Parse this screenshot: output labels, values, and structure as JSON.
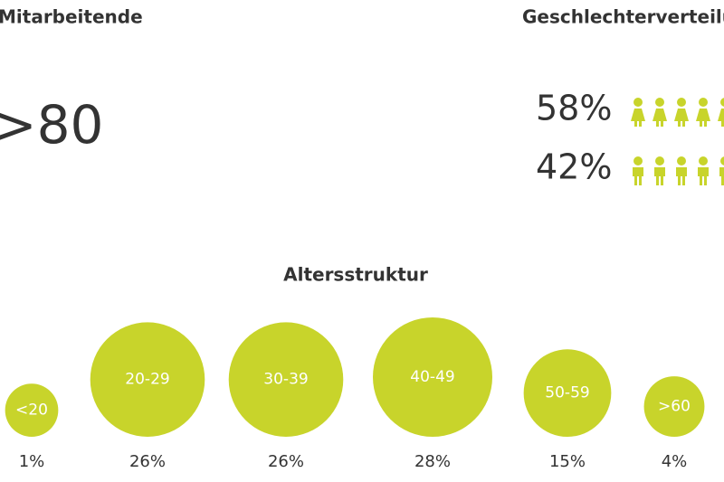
{
  "headcount": {
    "title": "Mitarbeitende",
    "value": ">80"
  },
  "gender": {
    "title": "Geschlechterverteilung",
    "female": "58%",
    "male": "42%"
  },
  "chart_data": {
    "type": "bubble",
    "title": "Altersstruktur",
    "categories": [
      "<20",
      "20-29",
      "30-39",
      "40-49",
      "50-59",
      ">60"
    ],
    "values": [
      1,
      26,
      26,
      28,
      15,
      4
    ],
    "value_labels": [
      "1%",
      "26%",
      "26%",
      "28%",
      "15%",
      "4%"
    ],
    "color": "#c8d42b"
  }
}
